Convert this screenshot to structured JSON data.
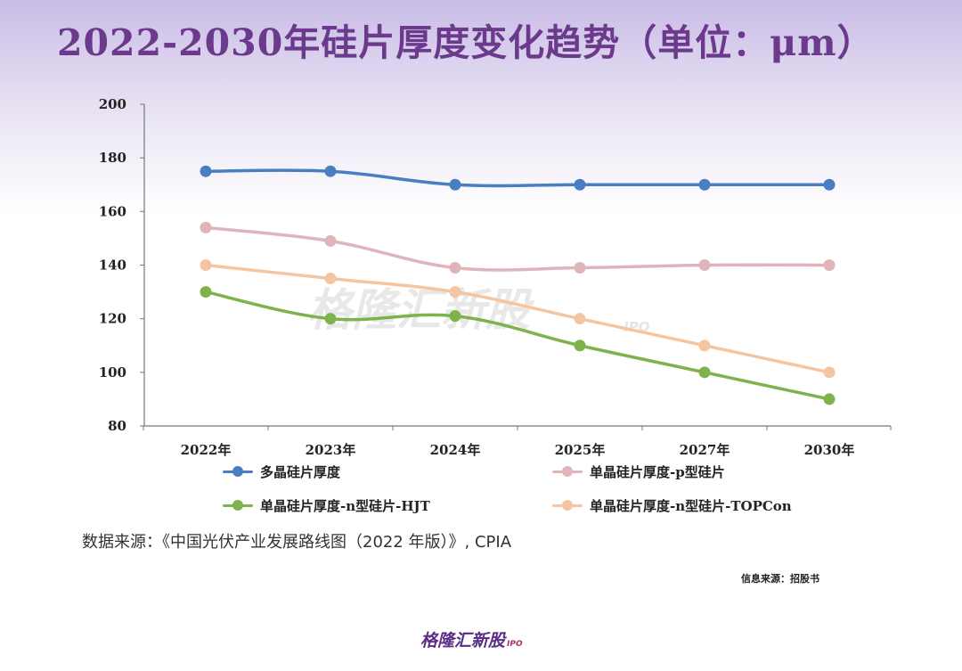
{
  "header": {
    "title": "2022-2030年硅片厚度变化趋势（单位：μm）"
  },
  "chart_data": {
    "type": "line",
    "title": "2022-2030年硅片厚度变化趋势（单位：μm）",
    "categories": [
      "2022年",
      "2023年",
      "2024年",
      "2025年",
      "2027年",
      "2030年"
    ],
    "ylim": [
      80,
      200
    ],
    "yticks": [
      80,
      100,
      120,
      140,
      160,
      180,
      200
    ],
    "grid": false,
    "legend_position": "bottom",
    "series": [
      {
        "name": "多晶硅片厚度",
        "color": "#4a7ec2",
        "values": [
          175,
          175,
          170,
          170,
          170,
          170
        ]
      },
      {
        "name": "单晶硅片厚度-p型硅片",
        "color": "#e0b4bb",
        "values": [
          154,
          149,
          139,
          139,
          140,
          140
        ]
      },
      {
        "name": "单晶硅片厚度-n型硅片-HJT",
        "color": "#80b24c",
        "values": [
          130,
          120,
          121,
          110,
          100,
          90
        ]
      },
      {
        "name": "单晶硅片厚度-n型硅片-TOPCon",
        "color": "#f4c5a0",
        "values": [
          140,
          135,
          130,
          120,
          110,
          100
        ]
      }
    ]
  },
  "footer": {
    "source": "数据来源：《中国光伏产业发展路线图（2022 年版）》, CPIA",
    "info": "信息来源：招股书",
    "watermark": "格隆汇新股",
    "watermark_sub": "IPO",
    "logo": "格隆汇新股",
    "logo_sub": "IPO"
  }
}
